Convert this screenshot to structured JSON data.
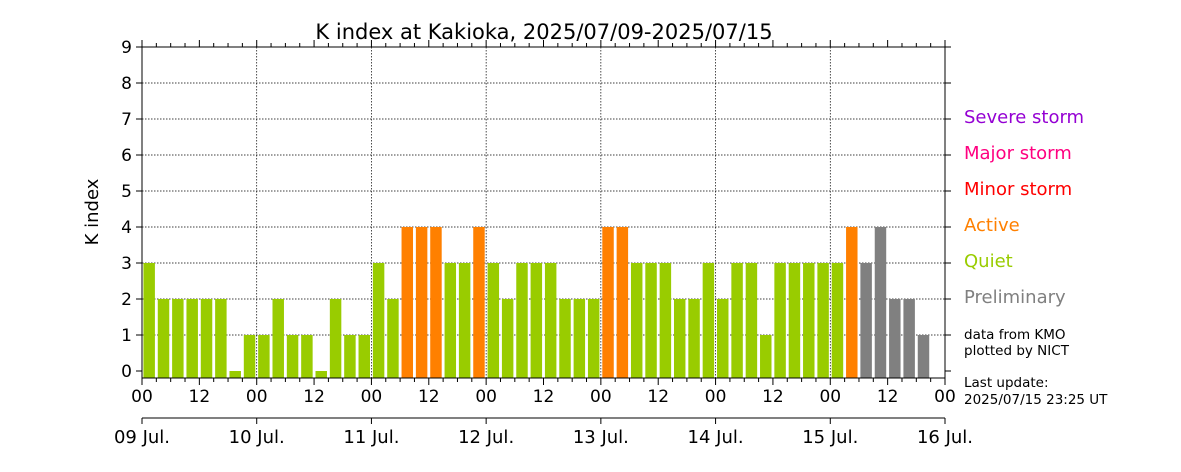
{
  "chart_data": {
    "type": "bar",
    "title": "K index at Kakioka, 2025/07/09-2025/07/15",
    "ylabel": "K index",
    "ylim": [
      0,
      9
    ],
    "yticks": [
      "0",
      "1",
      "2",
      "3",
      "4",
      "5",
      "6",
      "7",
      "8",
      "9"
    ],
    "interval_hours": 3,
    "x_tick_labels": [
      "00",
      "12",
      "00",
      "12",
      "00",
      "12",
      "00",
      "12",
      "00",
      "12",
      "00",
      "12",
      "00",
      "12",
      "00"
    ],
    "day_labels": [
      "09 Jul.",
      "10 Jul.",
      "11 Jul.",
      "12 Jul.",
      "13 Jul.",
      "14 Jul.",
      "15 Jul.",
      "16 Jul."
    ],
    "grid": true,
    "values": [
      3,
      2,
      2,
      2,
      2,
      2,
      0,
      1,
      1,
      2,
      1,
      1,
      0,
      2,
      1,
      1,
      3,
      2,
      4,
      4,
      4,
      3,
      3,
      4,
      3,
      2,
      3,
      3,
      3,
      2,
      2,
      2,
      4,
      4,
      3,
      3,
      3,
      2,
      2,
      3,
      2,
      3,
      3,
      1,
      3,
      3,
      3,
      3,
      3,
      4,
      3,
      4,
      2,
      2,
      1
    ],
    "bar_status": [
      "final",
      "final",
      "final",
      "final",
      "final",
      "final",
      "final",
      "final",
      "final",
      "final",
      "final",
      "final",
      "final",
      "final",
      "final",
      "final",
      "final",
      "final",
      "final",
      "final",
      "final",
      "final",
      "final",
      "final",
      "final",
      "final",
      "final",
      "final",
      "final",
      "final",
      "final",
      "final",
      "final",
      "final",
      "final",
      "final",
      "final",
      "final",
      "final",
      "final",
      "final",
      "final",
      "final",
      "final",
      "final",
      "final",
      "final",
      "final",
      "final",
      "final",
      "preliminary",
      "preliminary",
      "preliminary",
      "preliminary",
      "preliminary"
    ],
    "legend_placement": "right",
    "legend": [
      {
        "label": "Severe storm",
        "color": "#9400d3"
      },
      {
        "label": "Major storm",
        "color": "#ff0080"
      },
      {
        "label": "Minor storm",
        "color": "#ff0000"
      },
      {
        "label": "Active",
        "color": "#ff8000"
      },
      {
        "label": "Quiet",
        "color": "#99cc00"
      },
      {
        "label": "Preliminary",
        "color": "#808080"
      }
    ]
  },
  "notes": {
    "source_line1": "data from KMO",
    "source_line2": "plotted by NICT",
    "update_line1": "Last update:",
    "update_line2": "2025/07/15 23:25 UT"
  }
}
